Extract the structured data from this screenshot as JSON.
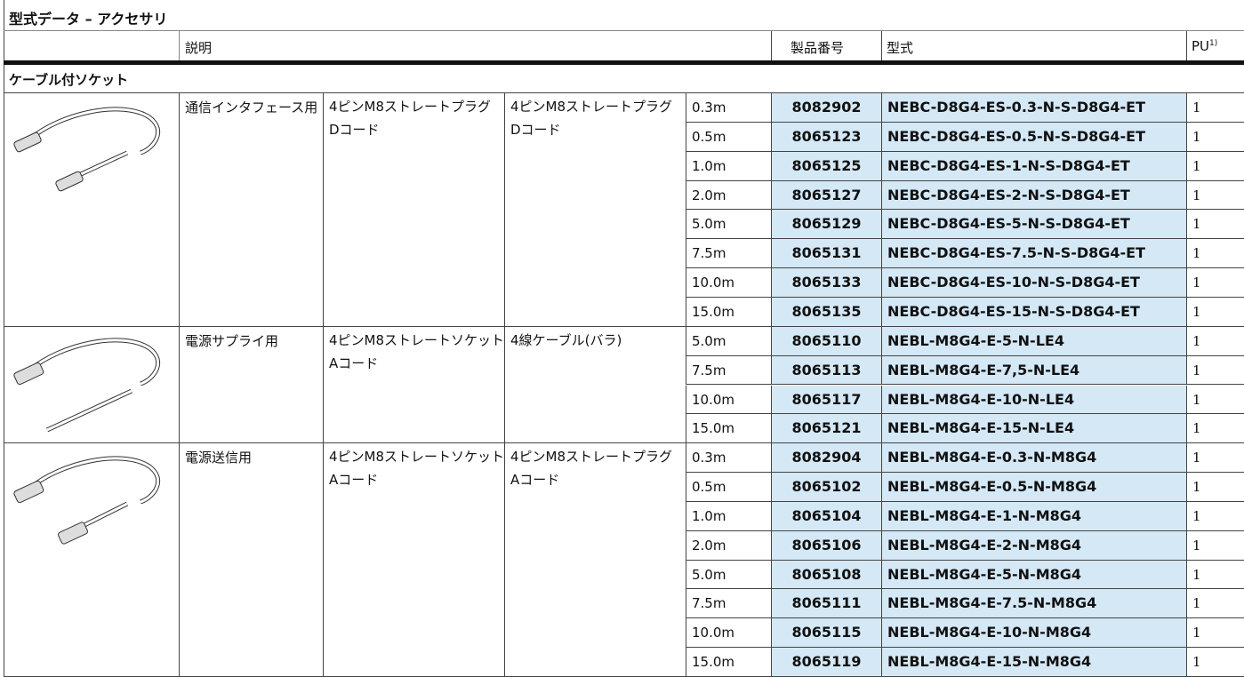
{
  "title": "型式データ – アクセサリ",
  "header": {
    "description": "説明",
    "part_number": "製品番号",
    "type": "型式",
    "pu": "PU",
    "pu_note": "1)"
  },
  "section": "ケーブル付ソケット",
  "groups": [
    {
      "purpose": "通信インタフェース用",
      "end1": [
        "4ピンM8ストレートプラグ",
        "Dコード"
      ],
      "end2": [
        "4ピンM8ストレートプラグ",
        "Dコード"
      ],
      "rows": [
        [
          "0.3m",
          "8082902",
          "NEBC-D8G4-ES-0.3-N-S-D8G4-ET",
          "1"
        ],
        [
          "0.5m",
          "8065123",
          "NEBC-D8G4-ES-0.5-N-S-D8G4-ET",
          "1"
        ],
        [
          "1.0m",
          "8065125",
          "NEBC-D8G4-ES-1-N-S-D8G4-ET",
          "1"
        ],
        [
          "2.0m",
          "8065127",
          "NEBC-D8G4-ES-2-N-S-D8G4-ET",
          "1"
        ],
        [
          "5.0m",
          "8065129",
          "NEBC-D8G4-ES-5-N-S-D8G4-ET",
          "1"
        ],
        [
          "7.5m",
          "8065131",
          "NEBC-D8G4-ES-7.5-N-S-D8G4-ET",
          "1"
        ],
        [
          "10.0m",
          "8065133",
          "NEBC-D8G4-ES-10-N-S-D8G4-ET",
          "1"
        ],
        [
          "15.0m",
          "8065135",
          "NEBC-D8G4-ES-15-N-S-D8G4-ET",
          "1"
        ]
      ]
    },
    {
      "purpose": "電源サプライ用",
      "end1": [
        "4ピンM8ストレートソケット",
        "Aコード"
      ],
      "end2": [
        "4線ケーブル(バラ)"
      ],
      "rows": [
        [
          "5.0m",
          "8065110",
          "NEBL-M8G4-E-5-N-LE4",
          "1"
        ],
        [
          "7.5m",
          "8065113",
          "NEBL-M8G4-E-7,5-N-LE4",
          "1"
        ],
        [
          "10.0m",
          "8065117",
          "NEBL-M8G4-E-10-N-LE4",
          "1"
        ],
        [
          "15.0m",
          "8065121",
          "NEBL-M8G4-E-15-N-LE4",
          "1"
        ]
      ]
    },
    {
      "purpose": "電源送信用",
      "end1": [
        "4ピンM8ストレートソケット",
        "Aコード"
      ],
      "end2": [
        "4ピンM8ストレートプラグ",
        "Aコード"
      ],
      "rows": [
        [
          "0.3m",
          "8082904",
          "NEBL-M8G4-E-0.3-N-M8G4",
          "1"
        ],
        [
          "0.5m",
          "8065102",
          "NEBL-M8G4-E-0.5-N-M8G4",
          "1"
        ],
        [
          "1.0m",
          "8065104",
          "NEBL-M8G4-E-1-N-M8G4",
          "1"
        ],
        [
          "2.0m",
          "8065106",
          "NEBL-M8G4-E-2-N-M8G4",
          "1"
        ],
        [
          "5.0m",
          "8065108",
          "NEBL-M8G4-E-5-N-M8G4",
          "1"
        ],
        [
          "7.5m",
          "8065111",
          "NEBL-M8G4-E-7.5-N-M8G4",
          "1"
        ],
        [
          "10.0m",
          "8065115",
          "NEBL-M8G4-E-10-N-M8G4",
          "1"
        ],
        [
          "15.0m",
          "8065119",
          "NEBL-M8G4-E-15-N-M8G4",
          "1"
        ]
      ]
    }
  ]
}
